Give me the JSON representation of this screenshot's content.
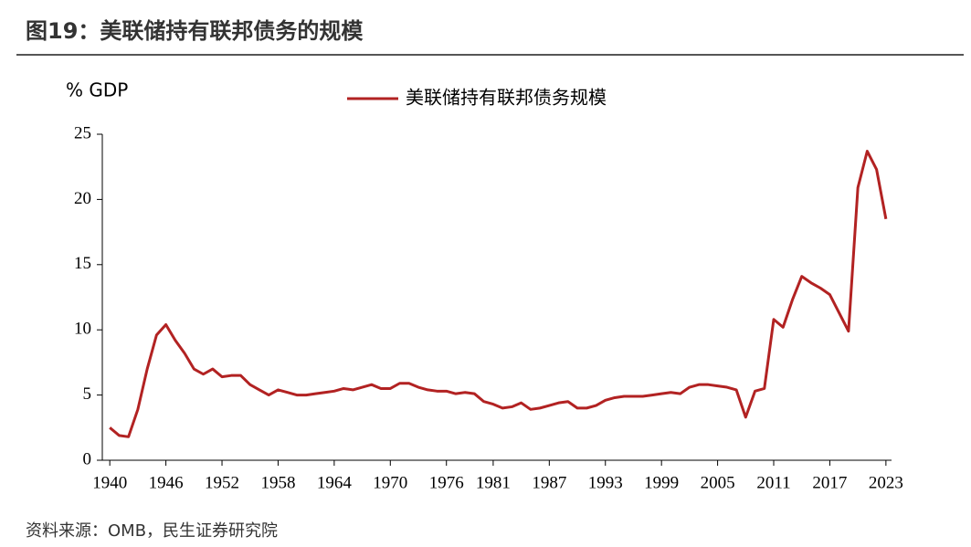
{
  "chart_data": {
    "type": "line",
    "title": "图19：美联储持有联邦债务的规模",
    "y_label": "% GDP",
    "source": "资料来源：OMB，民生证券研究院",
    "x": [
      1940,
      1941,
      1942,
      1943,
      1944,
      1945,
      1946,
      1947,
      1948,
      1949,
      1950,
      1951,
      1952,
      1953,
      1954,
      1955,
      1956,
      1957,
      1958,
      1959,
      1960,
      1961,
      1962,
      1963,
      1964,
      1965,
      1966,
      1967,
      1968,
      1969,
      1970,
      1971,
      1972,
      1973,
      1974,
      1975,
      1976,
      1977,
      1978,
      1979,
      1980,
      1981,
      1982,
      1983,
      1984,
      1985,
      1986,
      1987,
      1988,
      1989,
      1990,
      1991,
      1992,
      1993,
      1994,
      1995,
      1996,
      1997,
      1998,
      1999,
      2000,
      2001,
      2002,
      2003,
      2004,
      2005,
      2006,
      2007,
      2008,
      2009,
      2010,
      2011,
      2012,
      2013,
      2014,
      2015,
      2016,
      2017,
      2018,
      2019,
      2020,
      2021,
      2022,
      2023
    ],
    "series": [
      {
        "name": "美联储持有联邦债务规模",
        "color": "#b22222",
        "values": [
          2.5,
          1.9,
          1.8,
          3.9,
          7.0,
          9.6,
          10.4,
          9.2,
          8.2,
          7.0,
          6.6,
          7.0,
          6.4,
          6.5,
          6.5,
          5.8,
          5.4,
          5.0,
          5.4,
          5.2,
          5.0,
          5.0,
          5.1,
          5.2,
          5.3,
          5.5,
          5.4,
          5.6,
          5.8,
          5.5,
          5.5,
          5.9,
          5.9,
          5.6,
          5.4,
          5.3,
          5.3,
          5.1,
          5.2,
          5.1,
          4.5,
          4.3,
          4.0,
          4.1,
          4.4,
          3.9,
          4.0,
          4.2,
          4.4,
          4.5,
          4.0,
          4.0,
          4.2,
          4.6,
          4.8,
          4.9,
          4.9,
          4.9,
          5.0,
          5.1,
          5.2,
          5.1,
          5.6,
          5.8,
          5.8,
          5.7,
          5.6,
          5.4,
          3.3,
          5.3,
          5.5,
          10.8,
          10.2,
          12.3,
          14.1,
          13.6,
          13.2,
          12.7,
          11.3,
          9.9,
          20.9,
          23.7,
          22.3,
          18.5
        ]
      }
    ],
    "xlim": [
      1939.2,
      2023.6
    ],
    "xticks": [
      1940,
      1946,
      1952,
      1958,
      1964,
      1970,
      1976,
      1981,
      1987,
      1993,
      1999,
      2005,
      2011,
      2017,
      2023
    ],
    "ylim": [
      0,
      25
    ],
    "yticks": [
      0,
      5,
      10,
      15,
      20,
      25
    ],
    "legend": "top"
  }
}
